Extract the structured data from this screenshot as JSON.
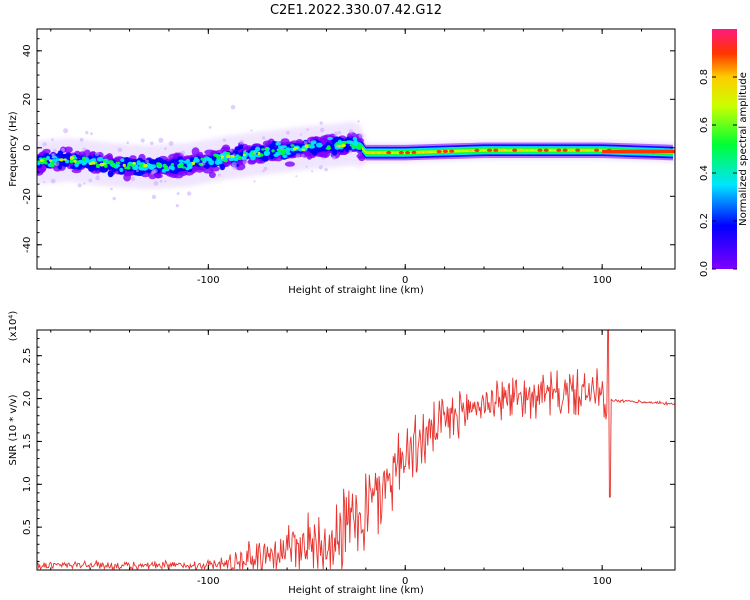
{
  "figure": {
    "title": "C2E1.2022.330.07.42.G12"
  },
  "chart_data": [
    {
      "type": "heatmap",
      "name": "spectrogram",
      "xlabel": "Height of straight line (km)",
      "ylabel": "Frequency (Hz)",
      "xlim": [
        -187,
        137
      ],
      "ylim": [
        -50,
        49
      ],
      "x_ticks": [
        -100,
        0,
        100
      ],
      "x_tick_labels": [
        "-100",
        "0",
        "100"
      ],
      "y_ticks": [
        -40,
        -20,
        0,
        20,
        40
      ],
      "y_tick_labels": [
        "-40",
        "-20",
        "0",
        "20",
        "40"
      ],
      "trace": {
        "x": [
          -187,
          -170,
          -150,
          -130,
          -110,
          -90,
          -70,
          -50,
          -35,
          -25,
          -22,
          -20,
          0,
          40,
          100,
          137
        ],
        "frequency": [
          -6,
          -5,
          -7,
          -8,
          -7,
          -4,
          -2,
          0,
          1,
          2,
          0,
          -2,
          -2,
          -1,
          -1,
          -2
        ]
      },
      "colorbar": {
        "label": "Normalized spectral amplitude",
        "range": [
          0,
          1
        ],
        "ticks": [
          0.0,
          0.2,
          0.4,
          0.6,
          0.8
        ],
        "tick_labels": [
          "0.0",
          "0.2",
          "0.4",
          "0.6",
          "0.8"
        ],
        "colormap": [
          "#7f00ff",
          "#0000ff",
          "#00e5ff",
          "#00ff33",
          "#ccff00",
          "#ffcc00",
          "#ff3300",
          "#ff1a80"
        ]
      }
    },
    {
      "type": "line",
      "name": "snr",
      "xlabel": "Height of straight line (km)",
      "ylabel": "SNR (10 * v/v)",
      "scale_label": "(x10⁴)",
      "xlim": [
        -187,
        137
      ],
      "ylim": [
        0,
        2.8
      ],
      "x_ticks": [
        -100,
        0,
        100
      ],
      "x_tick_labels": [
        "-100",
        "0",
        "100"
      ],
      "y_ticks": [
        0.5,
        1.0,
        1.5,
        2.0,
        2.5
      ],
      "y_tick_labels": [
        "0.5",
        "1.0",
        "1.5",
        "2.0",
        "2.5"
      ],
      "line_color": "#e8332e",
      "series": [
        {
          "name": "SNR",
          "x": [
            -187,
            -160,
            -140,
            -120,
            -100,
            -90,
            -80,
            -70,
            -60,
            -50,
            -40,
            -30,
            -25,
            -20,
            -15,
            -10,
            -5,
            0,
            10,
            20,
            25,
            30,
            40,
            50,
            60,
            70,
            80,
            90,
            100,
            103,
            104,
            110,
            120,
            137
          ],
          "y": [
            0.05,
            0.06,
            0.04,
            0.05,
            0.06,
            0.07,
            0.12,
            0.2,
            0.25,
            0.3,
            0.35,
            0.45,
            0.6,
            0.7,
            0.85,
            1.0,
            1.2,
            1.35,
            1.55,
            1.7,
            1.78,
            1.85,
            1.95,
            2.0,
            2.03,
            2.05,
            2.05,
            2.07,
            2.08,
            1.6,
            1.98,
            1.97,
            1.96,
            1.94
          ]
        }
      ]
    }
  ]
}
